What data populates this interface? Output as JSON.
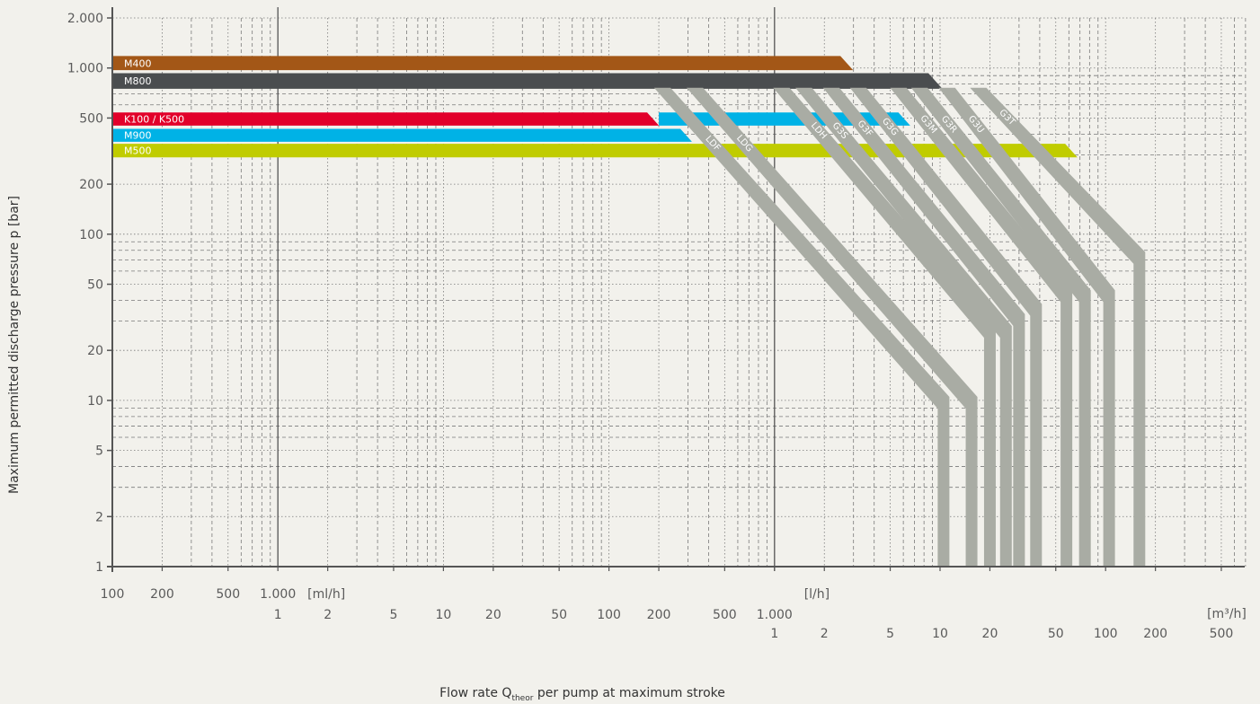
{
  "chart_data": {
    "type": "area",
    "ylabel": "Maximum permitted discharge pressure p [bar]",
    "xlabel": {
      "main": "Flow rate Q",
      "subscript": "theor",
      "rest": " per pump at maximum stroke"
    },
    "y_axis": {
      "scale": "log",
      "range": [
        1,
        2000
      ],
      "ticks": [
        {
          "value": 2000,
          "label": "2.000"
        },
        {
          "value": 1000,
          "label": "1.000"
        },
        {
          "value": 500,
          "label": "500"
        },
        {
          "value": 200,
          "label": "200"
        },
        {
          "value": 100,
          "label": "100"
        },
        {
          "value": 50,
          "label": "50"
        },
        {
          "value": 20,
          "label": "20"
        },
        {
          "value": 10,
          "label": "10"
        },
        {
          "value": 5,
          "label": "5"
        },
        {
          "value": 2,
          "label": "2"
        },
        {
          "value": 1,
          "label": "1"
        }
      ]
    },
    "x_axis": {
      "scale": "log",
      "base_unit": "ml/h",
      "range": [
        100,
        700000000
      ],
      "unit_labels": [
        {
          "value": 1400,
          "row": 1,
          "label": "[ml/h]"
        },
        {
          "value": 1400000,
          "row": 1,
          "label": "[l/h]"
        },
        {
          "value": 500000000,
          "row": 0,
          "label": "[m³/h]"
        }
      ],
      "ticks_row1": [
        {
          "value": 100,
          "label": "100"
        },
        {
          "value": 200,
          "label": "200"
        },
        {
          "value": 500,
          "label": "500"
        },
        {
          "value": 1000,
          "label": "1.000"
        }
      ],
      "ticks_row2": [
        {
          "value": 1000,
          "label": "1"
        },
        {
          "value": 2000,
          "label": "2"
        },
        {
          "value": 5000,
          "label": "5"
        },
        {
          "value": 10000,
          "label": "10"
        },
        {
          "value": 20000,
          "label": "20"
        },
        {
          "value": 50000,
          "label": "50"
        },
        {
          "value": 100000,
          "label": "100"
        },
        {
          "value": 200000,
          "label": "200"
        },
        {
          "value": 500000,
          "label": "500"
        },
        {
          "value": 1000000,
          "label": "1.000"
        }
      ],
      "ticks_row3": [
        {
          "value": 1000000,
          "label": "1"
        },
        {
          "value": 2000000,
          "label": "2"
        },
        {
          "value": 5000000,
          "label": "5"
        },
        {
          "value": 10000000,
          "label": "10"
        },
        {
          "value": 20000000,
          "label": "20"
        },
        {
          "value": 50000000,
          "label": "50"
        },
        {
          "value": 100000000,
          "label": "100"
        },
        {
          "value": 200000000,
          "label": "200"
        },
        {
          "value": 500000000,
          "label": "500"
        }
      ]
    },
    "grid": true,
    "colors": {
      "M400": "#a35717",
      "M800": "#4a4d4f",
      "K100/K500": "#e2002a",
      "M900": "#00b2e6",
      "M500": "#c0cc00",
      "diagonal": "#a9aca4",
      "background": "#f2f1ec",
      "axis": "#555555",
      "grid": "#7a7a7a"
    },
    "horizontal_bands": [
      {
        "name": "M400",
        "label": "M400",
        "pressure_max": 1180,
        "pressure_min": 970,
        "flow_max_ml_h": 2500000,
        "color_key": "M400"
      },
      {
        "name": "M800",
        "label": "M800",
        "pressure_max": 930,
        "pressure_min": 750,
        "flow_max_ml_h": 8500000,
        "color_key": "M800"
      },
      {
        "name": "K100/K500",
        "label": "K100 / K500",
        "pressure_max": 540,
        "pressure_min": 450,
        "flow_max_ml_h": 170000,
        "color_key": "K100/K500"
      },
      {
        "name": "M900 extension",
        "label": "",
        "pressure_max": 540,
        "pressure_min": 450,
        "flow_min_ml_h": 200000,
        "flow_max_ml_h": 5600000,
        "color_key": "M900"
      },
      {
        "name": "M900",
        "label": "M900",
        "pressure_max": 430,
        "pressure_min": 360,
        "flow_max_ml_h": 270000,
        "color_key": "M900"
      },
      {
        "name": "M500",
        "label": "M500",
        "pressure_max": 350,
        "pressure_min": 290,
        "flow_max_ml_h": 57000000,
        "color_key": "M500"
      }
    ],
    "diagonal_series": [
      {
        "name": "LDF",
        "label": "LDF",
        "start": [
          210000,
          760
        ],
        "knee": [
          10500000,
          10.5
        ]
      },
      {
        "name": "LDG",
        "label": "LDG",
        "start": [
          330000,
          760
        ],
        "knee": [
          15500000,
          10.5
        ]
      },
      {
        "name": "LDH",
        "label": "LDH",
        "start": [
          1100000,
          760
        ],
        "knee": [
          20000000,
          28
        ]
      },
      {
        "name": "G3S",
        "label": "G3S",
        "start": [
          1500000,
          760
        ],
        "knee": [
          25000000,
          28
        ]
      },
      {
        "name": "G3F",
        "label": "G3F",
        "start": [
          2200000,
          760
        ],
        "knee": [
          30000000,
          33
        ]
      },
      {
        "name": "G3G",
        "label": "G3G",
        "start": [
          3200000,
          760
        ],
        "knee": [
          38000000,
          38
        ]
      },
      {
        "name": "G3M",
        "label": "G3M",
        "start": [
          5600000,
          760
        ],
        "knee": [
          58000000,
          46
        ]
      },
      {
        "name": "G3R",
        "label": "G3R",
        "start": [
          7500000,
          760
        ],
        "knee": [
          75000000,
          46
        ]
      },
      {
        "name": "G3U",
        "label": "G3U",
        "start": [
          11000000,
          760
        ],
        "knee": [
          105000000,
          46
        ]
      },
      {
        "name": "G3T",
        "label": "G3T",
        "start": [
          17000000,
          760
        ],
        "knee": [
          160000000,
          78
        ]
      }
    ]
  }
}
